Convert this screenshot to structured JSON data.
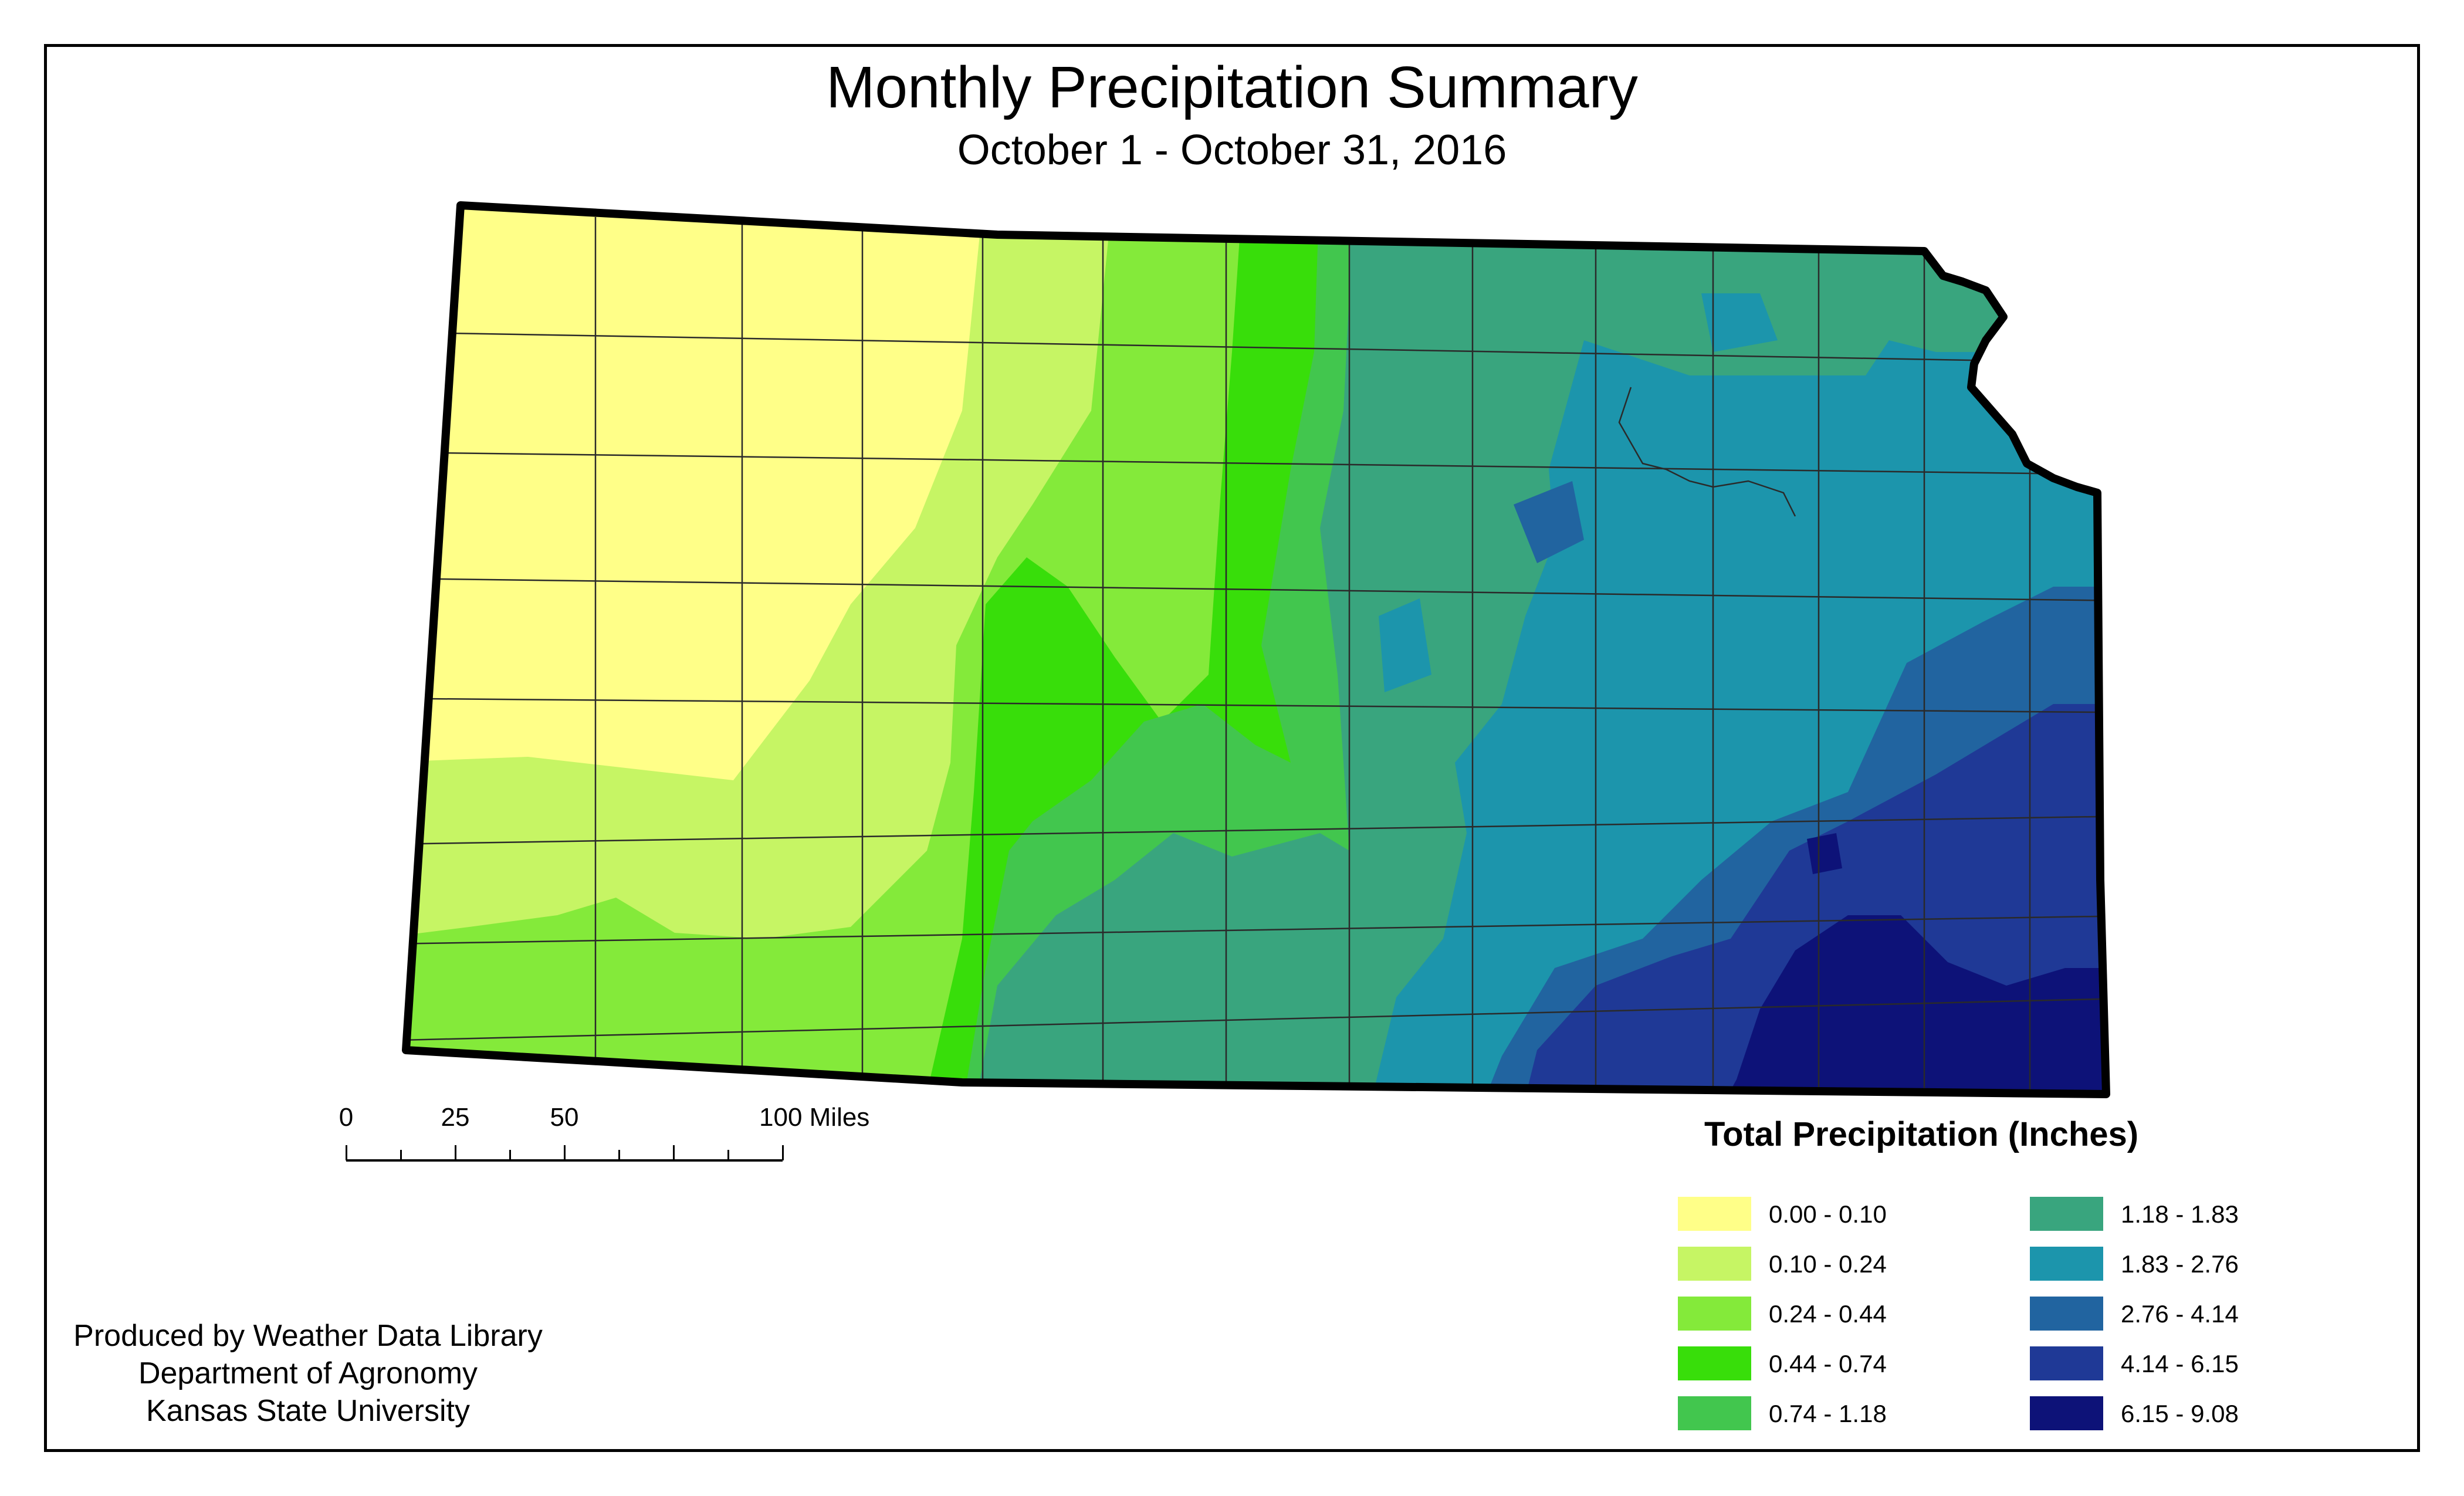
{
  "title": "Monthly Precipitation Summary",
  "subtitle": "October 1 - October 31, 2016",
  "scale_bar": {
    "labels": [
      "0",
      "25",
      "50",
      "100 Miles"
    ],
    "tick_miles": [
      0,
      12.5,
      25,
      37.5,
      50,
      62.5,
      75,
      87.5,
      100
    ]
  },
  "legend": {
    "title": "Total Precipitation (Inches)",
    "items": [
      {
        "label": "0.00 - 0.10",
        "color": "#ffff88"
      },
      {
        "label": "0.10 - 0.24",
        "color": "#c6f564"
      },
      {
        "label": "0.24 - 0.44",
        "color": "#84ea3a"
      },
      {
        "label": "0.44 - 0.74",
        "color": "#38de0a"
      },
      {
        "label": "0.74 - 1.18",
        "color": "#42c64e"
      },
      {
        "label": "1.18 - 1.83",
        "color": "#39a57e"
      },
      {
        "label": "1.83 - 2.76",
        "color": "#1c95ac"
      },
      {
        "label": "2.76 - 4.14",
        "color": "#2164a0"
      },
      {
        "label": "4.14 - 6.15",
        "color": "#1f3996"
      },
      {
        "label": "6.15 - 9.08",
        "color": "#0d1278"
      }
    ]
  },
  "credits": {
    "line1": "Produced by Weather Data Library",
    "line2": "Department of Agronomy",
    "line3": "Kansas State University"
  }
}
